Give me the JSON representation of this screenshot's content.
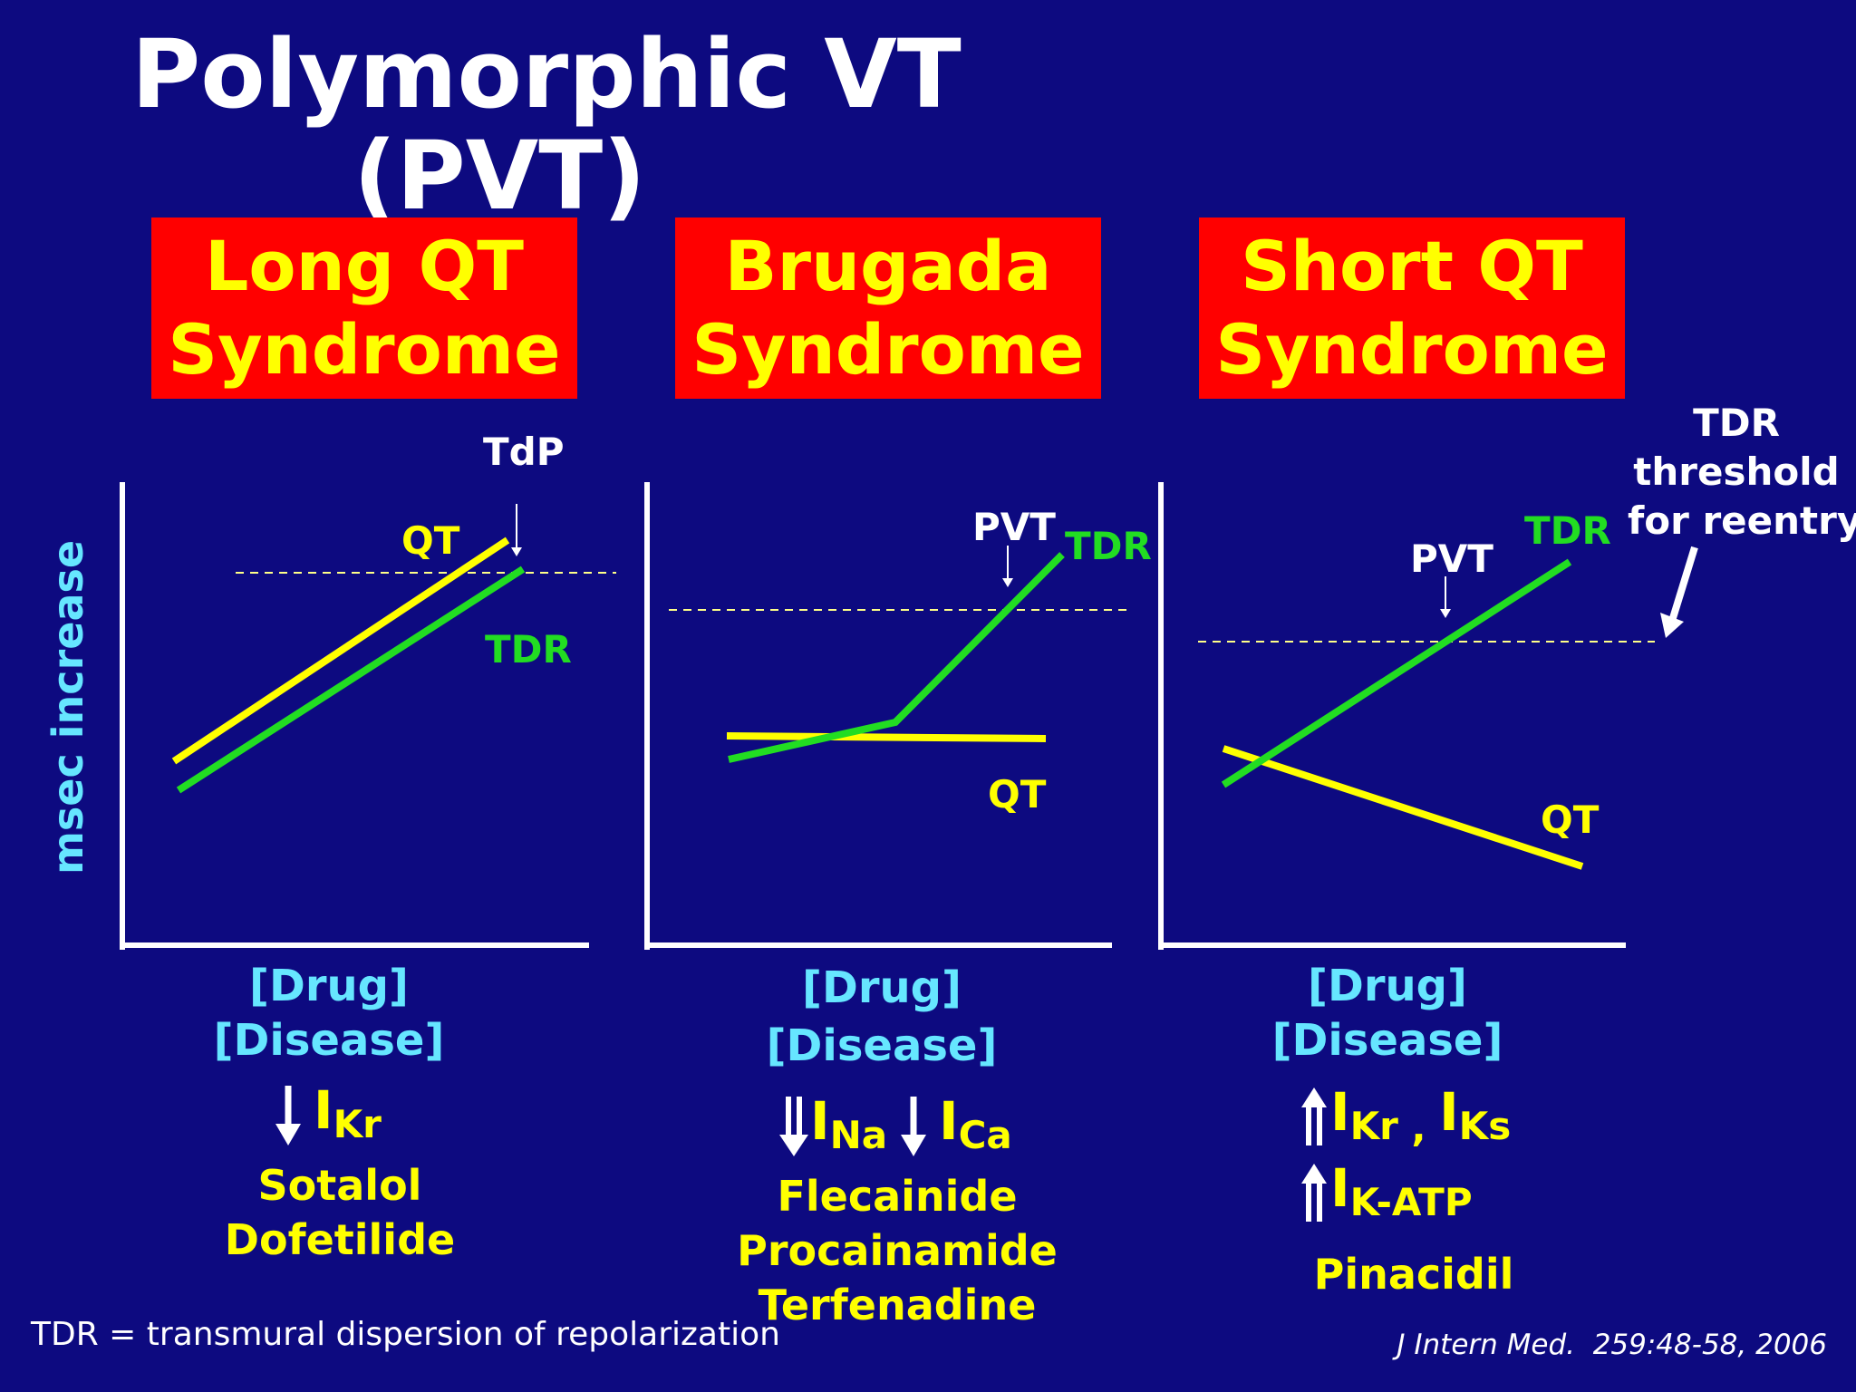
{
  "title": {
    "line1": "Polymorphic VT",
    "line2": "(PVT)"
  },
  "panels": [
    {
      "id": "long-qt",
      "header_line1": "Long QT",
      "header_line2": "Syndrome",
      "event_label": "TdP",
      "qt_label": "QT",
      "tdr_label": "TDR",
      "drug_label": "[Drug]",
      "disease_label": "[Disease]",
      "currents": [
        {
          "direction": "down",
          "base": "I",
          "sub": "Kr"
        }
      ],
      "drugs": [
        "Sotalol",
        "Dofetilide"
      ]
    },
    {
      "id": "brugada",
      "header_line1": "Brugada",
      "header_line2": "Syndrome",
      "event_label": "PVT",
      "qt_label": "QT",
      "tdr_label": "TDR",
      "drug_label": "[Drug]",
      "disease_label": "[Disease]",
      "currents": [
        {
          "direction": "down",
          "base": "I",
          "sub": "Na"
        },
        {
          "direction": "down",
          "base": "I",
          "sub": "Ca"
        }
      ],
      "drugs": [
        "Flecainide",
        "Procainamide",
        "Terfenadine"
      ]
    },
    {
      "id": "short-qt",
      "header_line1": "Short QT",
      "header_line2": "Syndrome",
      "event_label": "PVT",
      "qt_label": "QT",
      "tdr_label": "TDR",
      "drug_label": "[Drug]",
      "disease_label": "[Disease]",
      "currents_line1": {
        "direction": "up",
        "base": "I",
        "sub": "Kr",
        "sep": " , ",
        "base2": "I",
        "sub2": "Ks"
      },
      "currents_line2": {
        "direction": "up",
        "base": "I",
        "sub": "K-ATP"
      },
      "drugs": [
        "Pinacidil"
      ]
    }
  ],
  "y_axis_label": "msec  increase",
  "threshold_note": {
    "line1": "TDR",
    "line2": "threshold",
    "line3": "for reentry"
  },
  "footnote": "TDR = transmural dispersion of repolarization",
  "citation": "J Intern Med.  259:48-58, 2006",
  "colors": {
    "background": "#0d0a80",
    "header_box": "#ff0000",
    "header_text": "#ffff00",
    "qt_line": "#ffff00",
    "tdr_line": "#22dd22",
    "axis_label": "#66e6ff"
  }
}
